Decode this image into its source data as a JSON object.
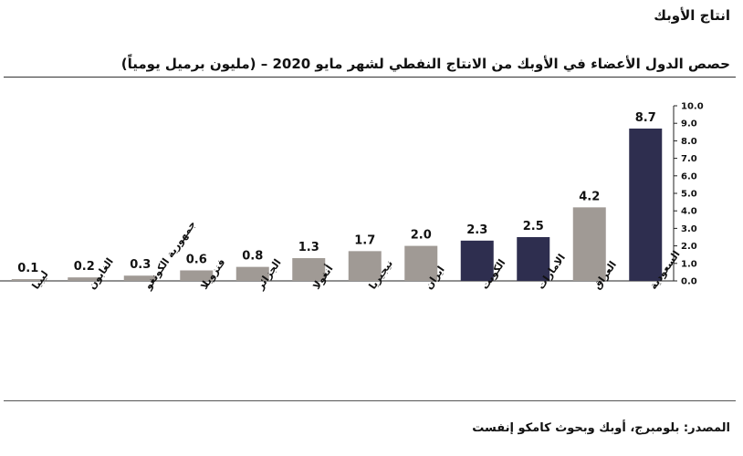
{
  "header": {
    "section_title": "انتاج الأوبك"
  },
  "source_note": "المصدر: بلومبرج، أوبك وبحوث كامكو إنفست",
  "chart_data": {
    "type": "bar",
    "title": "حصص الدول الأعضاء في الأوبك من الانتاج النفطي لشهر مايو 2020 – (مليون برميل يومياً)",
    "xlabel": "",
    "ylabel": "",
    "categories": [
      "ليبيا",
      "الغابون",
      "جمهورية الكونغو",
      "فنزويلا",
      "الجزائر",
      "أنغولا",
      "نيجيريا",
      "ايران",
      "الكويت",
      "الامارات",
      "العراق",
      "السعودية"
    ],
    "values": [
      0.1,
      0.2,
      0.3,
      0.6,
      0.8,
      1.3,
      1.7,
      2.0,
      2.3,
      2.5,
      4.2,
      8.7
    ],
    "value_labels": [
      "0.1",
      "0.2",
      "0.3",
      "0.6",
      "0.8",
      "1.3",
      "1.7",
      "2.0",
      "2.3",
      "2.5",
      "4.2",
      "8.7"
    ],
    "highlight": [
      false,
      false,
      false,
      false,
      false,
      false,
      false,
      false,
      true,
      true,
      false,
      true
    ],
    "colors": {
      "default": "#a09a95",
      "highlight": "#2e2e4f"
    },
    "ylim": [
      0,
      10
    ],
    "yticks": [
      "0.0",
      "1.0",
      "2.0",
      "3.0",
      "4.0",
      "5.0",
      "6.0",
      "7.0",
      "8.0",
      "9.0",
      "10.0"
    ],
    "y_axis_side": "right",
    "grid": false,
    "legend": "none"
  }
}
